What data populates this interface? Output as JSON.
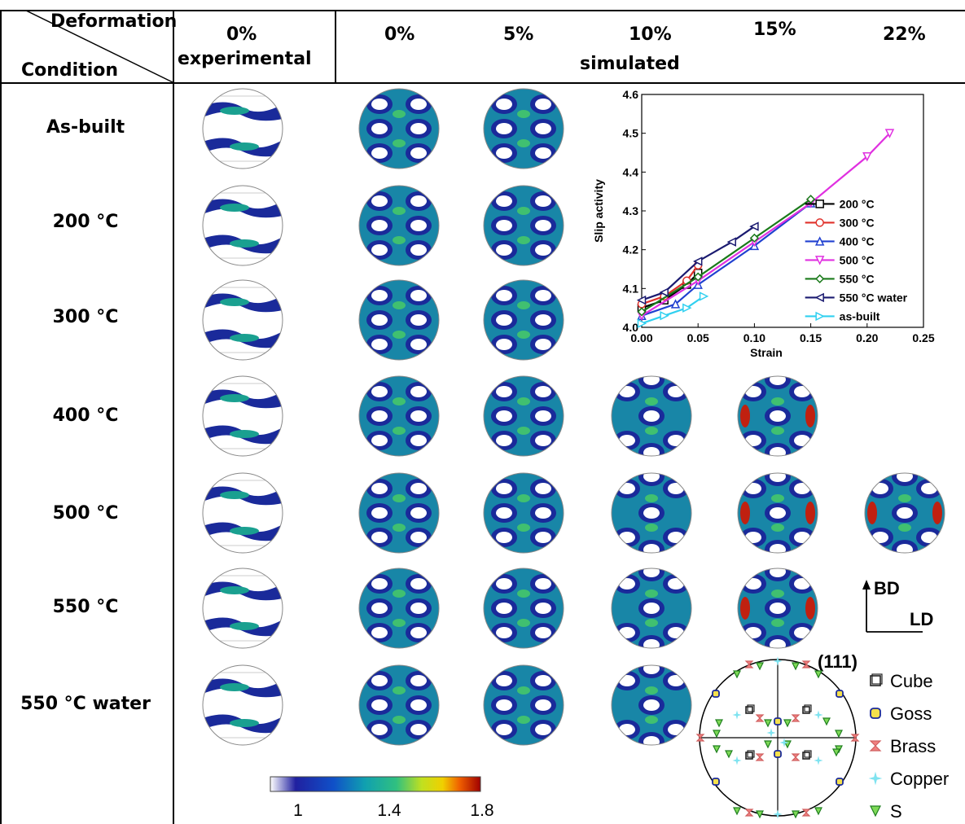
{
  "header": {
    "corner_top": "Deformation",
    "corner_bottom": "Condition",
    "col_exp_pct": "0%",
    "col_exp_label": "experimental",
    "sim_pcts": [
      "0%",
      "5%",
      "10%",
      "15%",
      "22%"
    ],
    "sim_label": "simulated"
  },
  "rows": [
    "As-built",
    "200 °C",
    "300 °C",
    "400 °C",
    "500 °C",
    "550 °C",
    "550 °C water"
  ],
  "colorbar": {
    "ticks": [
      "1",
      "1.4",
      "1.8"
    ],
    "min": 1.0,
    "max": 1.8
  },
  "axes_indicator": {
    "up": "BD",
    "right": "LD"
  },
  "pole_figure": {
    "title": "(111)",
    "legend": [
      {
        "label": "Cube",
        "color": "#222222",
        "marker": "square"
      },
      {
        "label": "Goss",
        "color": "#f4e04d",
        "marker": "circle"
      },
      {
        "label": "Brass",
        "color": "#f08080",
        "marker": "hourglass"
      },
      {
        "label": "Copper",
        "color": "#7fe3f0",
        "marker": "star"
      },
      {
        "label": "S",
        "color": "#7ed957",
        "marker": "triangle"
      }
    ]
  },
  "chart_data": {
    "type": "line",
    "xlabel": "Strain",
    "ylabel": "Slip activity",
    "xlim": [
      0.0,
      0.25
    ],
    "ylim": [
      4.0,
      4.6
    ],
    "xticks": [
      "0.00",
      "0.05",
      "0.10",
      "0.15",
      "0.20",
      "0.25"
    ],
    "yticks": [
      "4.0",
      "4.1",
      "4.2",
      "4.3",
      "4.4",
      "4.5",
      "4.6"
    ],
    "legend_position": "right",
    "series": [
      {
        "name": "200 °C",
        "color": "#000000",
        "marker": "square",
        "x": [
          0.0,
          0.02,
          0.04,
          0.05
        ],
        "y": [
          4.05,
          4.07,
          4.11,
          4.14
        ]
      },
      {
        "name": "300 °C",
        "color": "#e0302a",
        "marker": "circle",
        "x": [
          0.0,
          0.02,
          0.04,
          0.05
        ],
        "y": [
          4.06,
          4.08,
          4.12,
          4.16
        ]
      },
      {
        "name": "400 °C",
        "color": "#2040d0",
        "marker": "triangle-up",
        "x": [
          0.0,
          0.03,
          0.05,
          0.1,
          0.15
        ],
        "y": [
          4.03,
          4.06,
          4.11,
          4.21,
          4.32
        ]
      },
      {
        "name": "500 °C",
        "color": "#e030e0",
        "marker": "triangle-down",
        "x": [
          0.0,
          0.05,
          0.1,
          0.15,
          0.2,
          0.22
        ],
        "y": [
          4.03,
          4.12,
          4.22,
          4.32,
          4.44,
          4.5
        ]
      },
      {
        "name": "550 °C",
        "color": "#1a7a1a",
        "marker": "diamond",
        "x": [
          0.0,
          0.05,
          0.1,
          0.15
        ],
        "y": [
          4.04,
          4.13,
          4.23,
          4.33
        ]
      },
      {
        "name": "550 °C water",
        "color": "#1a1a70",
        "marker": "triangle-left",
        "x": [
          0.0,
          0.02,
          0.05,
          0.08,
          0.1
        ],
        "y": [
          4.07,
          4.09,
          4.17,
          4.22,
          4.26
        ]
      },
      {
        "name": "as-built",
        "color": "#30d0f0",
        "marker": "triangle-right",
        "x": [
          0.0,
          0.02,
          0.04,
          0.055
        ],
        "y": [
          4.01,
          4.03,
          4.05,
          4.08
        ]
      }
    ]
  }
}
